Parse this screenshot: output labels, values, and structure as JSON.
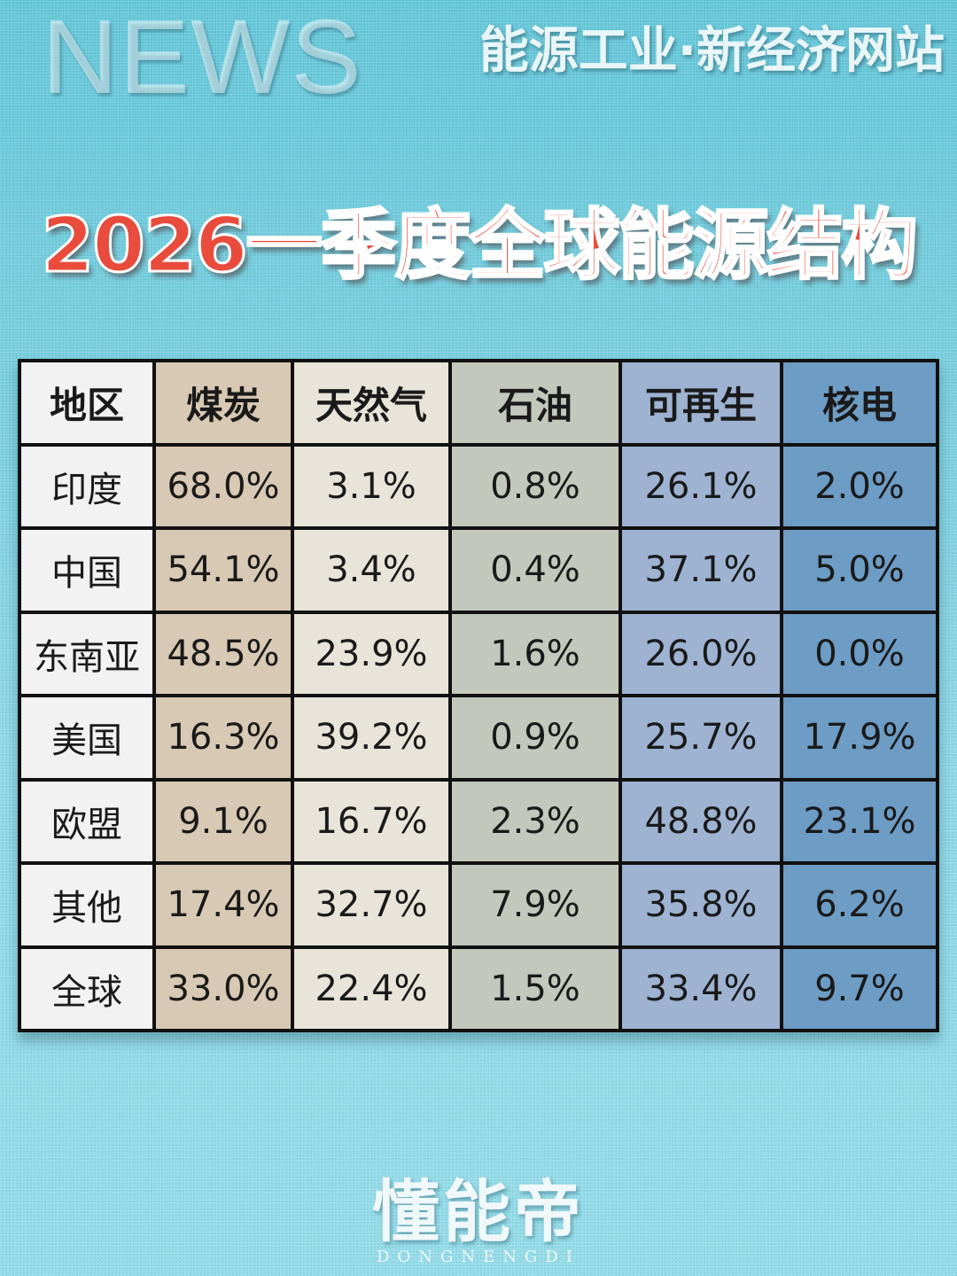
{
  "header": {
    "watermark": "NEWS",
    "site_name": "能源工业·新经济网站"
  },
  "title": "2026一季度全球能源结构",
  "footer": {
    "brand": "懂能帝",
    "brand_pinyin": "DONGNENGDI"
  },
  "colors": {
    "title_red": "#e94b3c",
    "region_col": "#f2f2f2",
    "coal_col": "#d8c9b4",
    "gas_col": "#e8e4da",
    "oil_col": "#c3c8bd",
    "renewable_col": "#9eb3d2",
    "nuclear_col": "#6d9cc4"
  },
  "chart_data": {
    "type": "table",
    "title": "2026一季度全球能源结构",
    "columns": [
      "地区",
      "煤炭",
      "天然气",
      "石油",
      "可再生",
      "核电"
    ],
    "rows": [
      [
        "印度",
        "68.0%",
        "3.1%",
        "0.8%",
        "26.1%",
        "2.0%"
      ],
      [
        "中国",
        "54.1%",
        "3.4%",
        "0.4%",
        "37.1%",
        "5.0%"
      ],
      [
        "东南亚",
        "48.5%",
        "23.9%",
        "1.6%",
        "26.0%",
        "0.0%"
      ],
      [
        "美国",
        "16.3%",
        "39.2%",
        "0.9%",
        "25.7%",
        "17.9%"
      ],
      [
        "欧盟",
        "9.1%",
        "16.7%",
        "2.3%",
        "48.8%",
        "23.1%"
      ],
      [
        "其他",
        "17.4%",
        "32.7%",
        "7.9%",
        "35.8%",
        "6.2%"
      ],
      [
        "全球",
        "33.0%",
        "22.4%",
        "1.5%",
        "33.4%",
        "9.7%"
      ]
    ]
  }
}
